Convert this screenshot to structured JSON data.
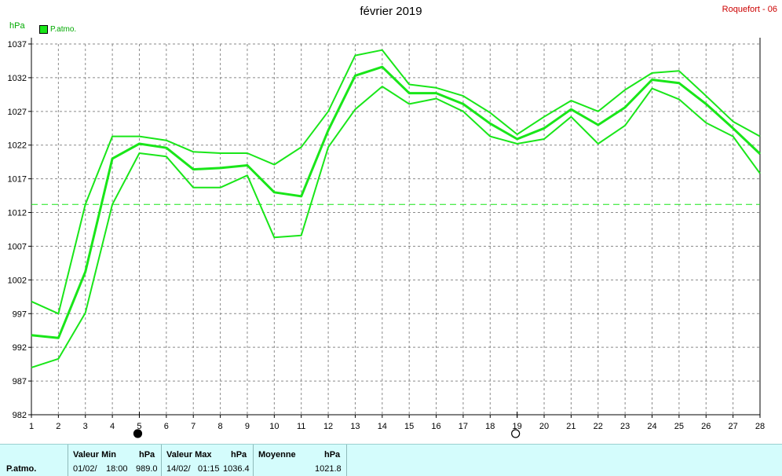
{
  "header": {
    "title": "février 2019",
    "station": "Roquefort - 06",
    "unit": "hPa"
  },
  "legend": {
    "label": "P.atmo.",
    "color": "#19e619"
  },
  "chart_data": {
    "type": "line",
    "title": "février 2019",
    "ylabel": "hPa",
    "xlim": [
      1,
      28
    ],
    "ylim": [
      982,
      1037
    ],
    "x": [
      1,
      2,
      3,
      4,
      5,
      6,
      7,
      8,
      9,
      10,
      11,
      12,
      13,
      14,
      15,
      16,
      17,
      18,
      19,
      20,
      21,
      22,
      23,
      24,
      25,
      26,
      27,
      28
    ],
    "yticks": [
      982,
      987,
      992,
      997,
      1002,
      1007,
      1012,
      1017,
      1022,
      1027,
      1032,
      1037
    ],
    "grid": true,
    "legend_position": "top-left",
    "reference_line": 1013.2,
    "series": [
      {
        "name": "P.atmo.",
        "role": "max",
        "values": [
          998.8,
          997.0,
          1013.2,
          1023.3,
          1023.3,
          1022.7,
          1021.0,
          1020.8,
          1020.8,
          1019.1,
          1021.7,
          1027.0,
          1035.3,
          1036.1,
          1031.0,
          1030.5,
          1029.3,
          1026.8,
          1023.6,
          1026.2,
          1028.6,
          1027.0,
          1030.2,
          1032.7,
          1033.0,
          1029.3,
          1025.5,
          1023.3
        ]
      },
      {
        "name": "P.atmo.",
        "role": "mean",
        "values": [
          993.8,
          993.4,
          1003.2,
          1020.0,
          1022.2,
          1021.6,
          1018.4,
          1018.6,
          1019.0,
          1015.0,
          1014.4,
          1024.2,
          1032.3,
          1033.6,
          1029.7,
          1029.7,
          1028.1,
          1025.2,
          1022.9,
          1024.5,
          1027.3,
          1025.0,
          1027.6,
          1031.7,
          1031.2,
          1028.1,
          1024.5,
          1020.7
        ]
      },
      {
        "name": "P.atmo.",
        "role": "min",
        "values": [
          989.0,
          990.3,
          997.1,
          1013.2,
          1020.8,
          1020.3,
          1015.7,
          1015.7,
          1017.5,
          1008.3,
          1008.6,
          1021.7,
          1027.3,
          1030.7,
          1028.1,
          1028.9,
          1027.0,
          1023.3,
          1022.2,
          1022.9,
          1026.2,
          1022.2,
          1024.9,
          1030.4,
          1028.8,
          1025.3,
          1023.3,
          1017.8
        ]
      }
    ],
    "moon_phases": [
      {
        "day": 5,
        "phase": "new"
      },
      {
        "day": 19,
        "phase": "full"
      }
    ]
  },
  "stats": {
    "row_label": "P.atmo.",
    "min": {
      "label": "Valeur Min",
      "unit": "hPa",
      "date": "01/02/",
      "time": "18:00",
      "value": "989.0"
    },
    "max": {
      "label": "Valeur Max",
      "unit": "hPa",
      "date": "14/02/",
      "time": "01:15",
      "value": "1036.4"
    },
    "mean": {
      "label": "Moyenne",
      "unit": "hPa",
      "value": "1021.8"
    }
  }
}
